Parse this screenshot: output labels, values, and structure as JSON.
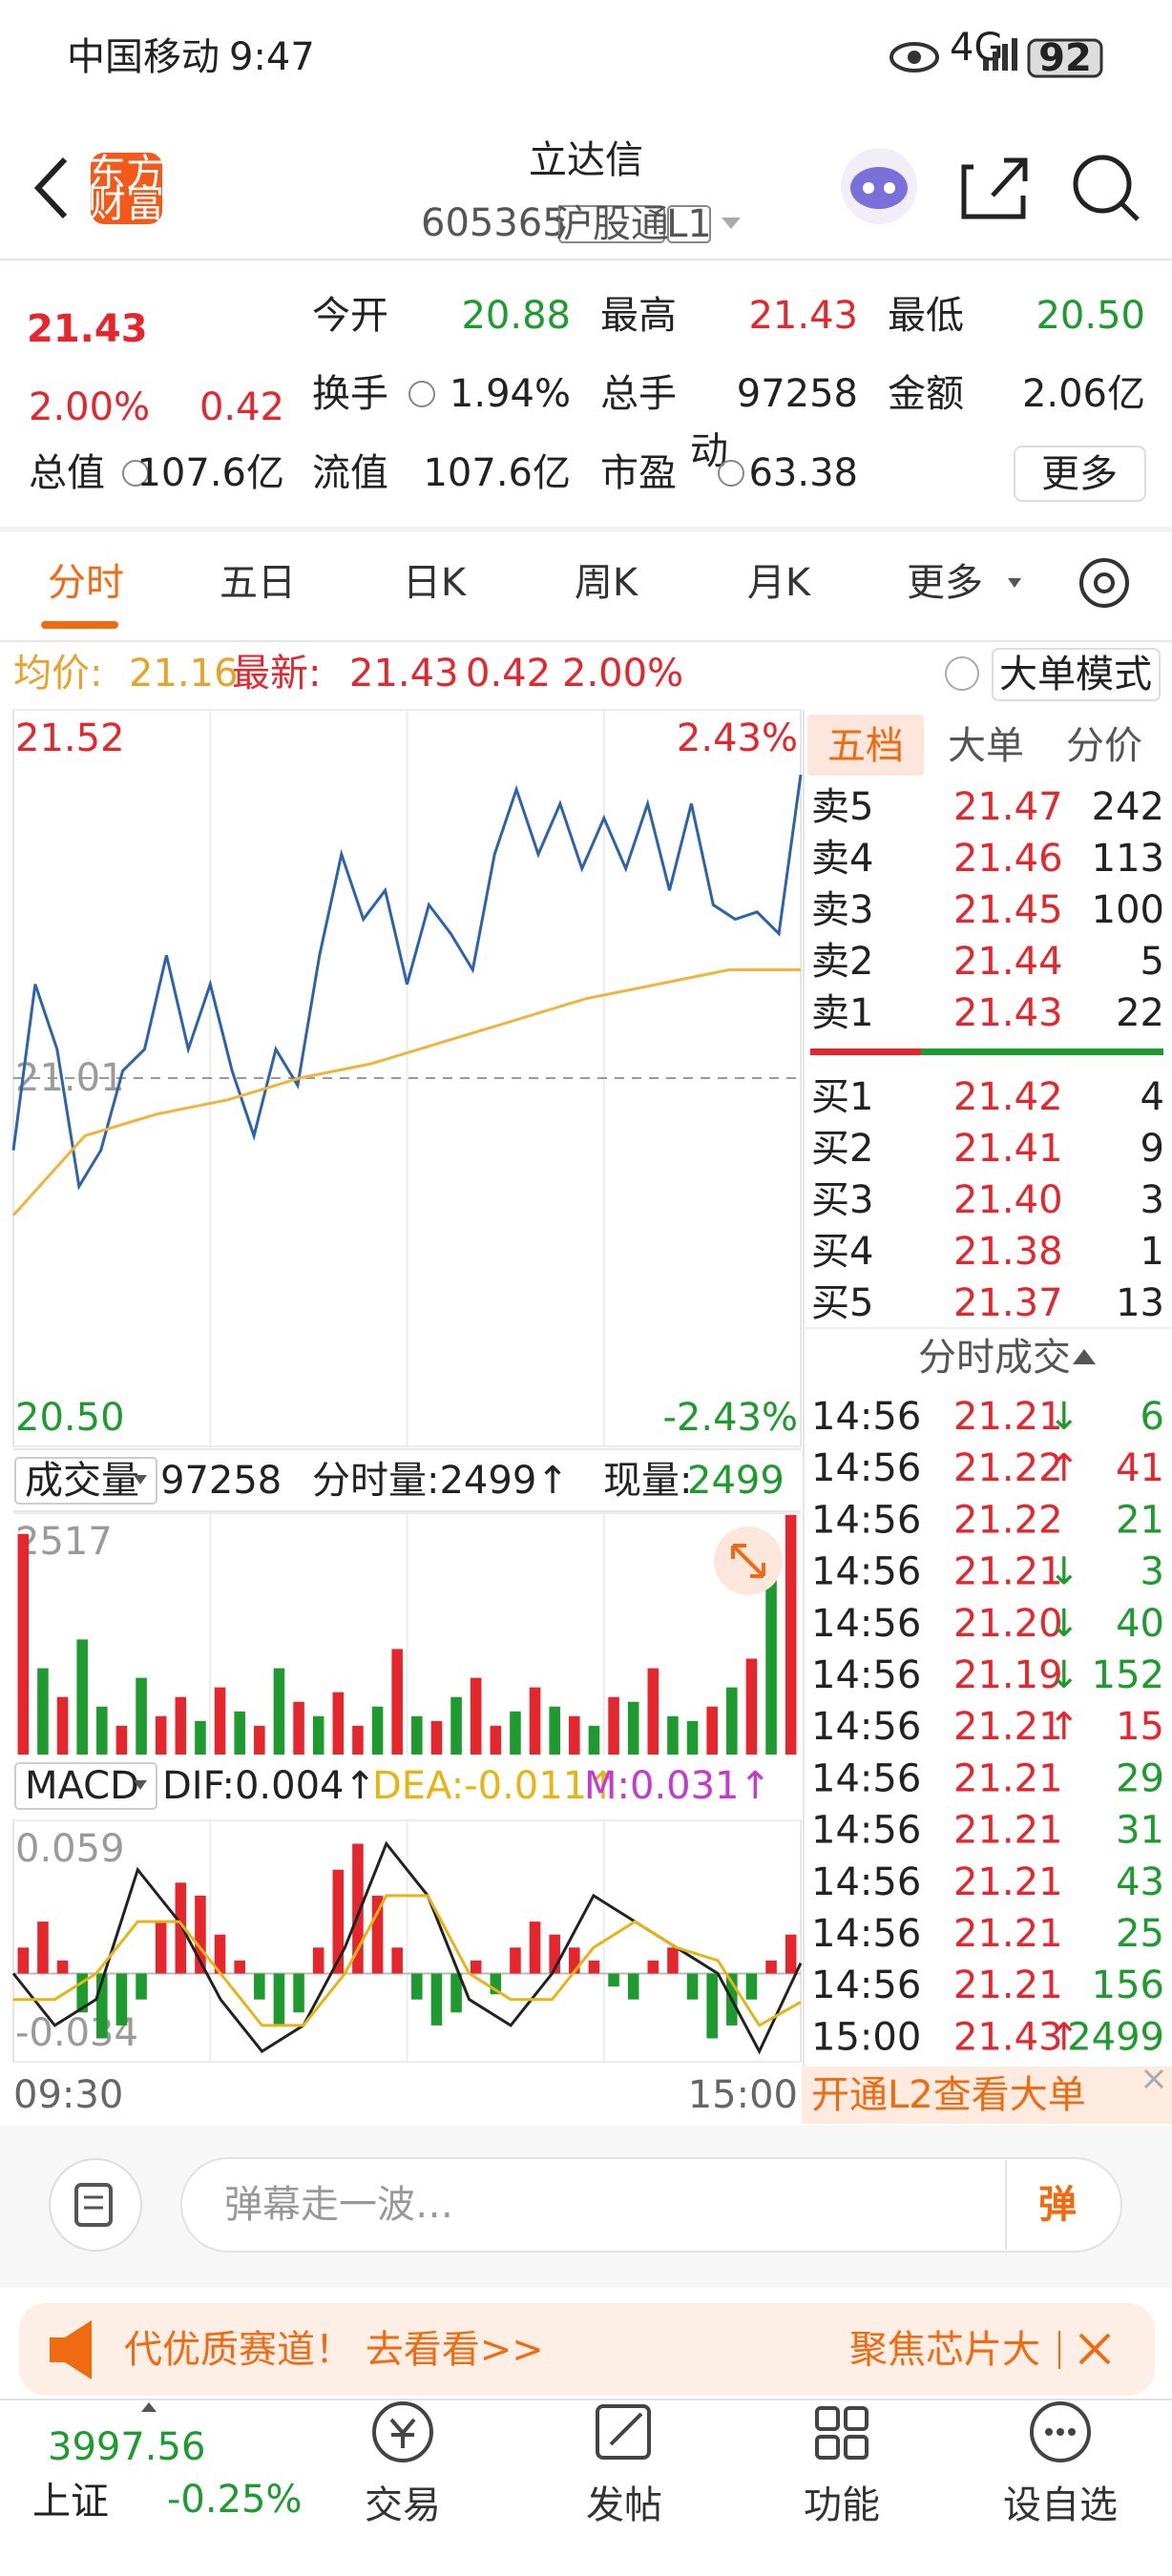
{
  "status_bar": {
    "carrier": "中国移动",
    "time": "9:47",
    "network": "4G",
    "battery": "92"
  },
  "header": {
    "logo": [
      "东方",
      "财富"
    ],
    "title": "立达信",
    "code": "605365",
    "badges": [
      "沪股通",
      "L1"
    ]
  },
  "quote": {
    "price": "21.43",
    "change_pct": "2.00%",
    "change": "0.42",
    "market_cap_label": "总值",
    "market_cap": "107.6亿",
    "fields": [
      {
        "label": "今开",
        "value": "20.88",
        "color": "#1e9b2e"
      },
      {
        "label": "最高",
        "value": "21.43",
        "color": "#e5262d"
      },
      {
        "label": "最低",
        "value": "20.50",
        "color": "#1e9b2e"
      },
      {
        "label": "换手",
        "value": "1.94%",
        "color": "#222222"
      },
      {
        "label": "总手",
        "value": "97258",
        "color": "#222222"
      },
      {
        "label": "金额",
        "value": "2.06亿",
        "color": "#222222"
      },
      {
        "label": "流值",
        "value": "107.6亿",
        "color": "#222222"
      },
      {
        "label": "市盈",
        "value": "63.38",
        "color": "#222222"
      }
    ],
    "pe_mark": "动",
    "more": "更多"
  },
  "tabs": [
    "分时",
    "五日",
    "日K",
    "周K",
    "月K",
    "更多"
  ],
  "info_line": {
    "avg_label": "均价:",
    "avg": "21.16",
    "last_label": "最新:",
    "last": "21.43",
    "change": "0.42",
    "change_pct": "2.00%",
    "mode": "大单模式"
  },
  "chart_data": [
    {
      "type": "line",
      "ylim": [
        20.5,
        21.52
      ],
      "yticks": [
        21.52,
        21.01,
        {
          "value": 20.5,
          "label": "20.50"
        }
      ],
      "ytick_colors": [
        "#e5262d",
        "#9a9a9a",
        "#1e9b2e"
      ],
      "y2lim": [
        -2.43,
        2.43
      ],
      "y2ticks": [
        {
          "value": 2.43,
          "label": "2.43%"
        },
        {
          "value": -2.43,
          "label": "-2.43%"
        }
      ],
      "y2tick_colors": [
        "#e5262d",
        "#1e9b2e"
      ],
      "series": [
        {
          "color": "#2d62ad",
          "values": [
            20.91,
            21.14,
            21.05,
            20.86,
            20.91,
            21.02,
            21.05,
            21.18,
            21.05,
            21.14,
            21.02,
            20.93,
            21.05,
            21.0,
            21.18,
            21.32,
            21.23,
            21.27,
            21.14,
            21.25,
            21.21,
            21.16,
            21.32,
            21.41,
            21.32,
            21.39,
            21.3,
            21.37,
            21.3,
            21.39,
            21.27,
            21.39,
            21.25,
            21.23,
            21.24,
            21.21,
            21.43
          ]
        },
        {
          "color": "#f0b43c",
          "values": [
            20.82,
            20.93,
            20.96,
            20.98,
            21.01,
            21.03,
            21.06,
            21.09,
            21.12,
            21.14,
            21.16,
            21.16
          ]
        }
      ]
    },
    {
      "type": "bar",
      "ylim": [
        0,
        2517
      ],
      "yticks": [
        2517
      ],
      "ytick_colors": [
        "#9a9a9a"
      ],
      "values": [
        2300,
        900,
        600,
        1200,
        500,
        300,
        800,
        400,
        600,
        350,
        700,
        450,
        300,
        900,
        550,
        400,
        650,
        300,
        500,
        1100,
        400,
        350,
        600,
        800,
        300,
        450,
        700,
        500,
        400,
        300,
        600,
        550,
        900,
        400,
        350,
        500,
        700,
        1000,
        1900,
        2499
      ],
      "colors": [
        "#e5262d",
        "#1e9b2e",
        "#e5262d",
        "#1e9b2e",
        "#1e9b2e",
        "#e5262d",
        "#1e9b2e",
        "#e5262d",
        "#e5262d",
        "#1e9b2e",
        "#e5262d",
        "#1e9b2e",
        "#e5262d",
        "#1e9b2e",
        "#e5262d",
        "#1e9b2e",
        "#e5262d",
        "#e5262d",
        "#1e9b2e",
        "#e5262d",
        "#1e9b2e",
        "#e5262d",
        "#1e9b2e",
        "#e5262d",
        "#e5262d",
        "#1e9b2e",
        "#e5262d",
        "#1e9b2e",
        "#e5262d",
        "#1e9b2e",
        "#e5262d",
        "#1e9b2e",
        "#e5262d",
        "#1e9b2e",
        "#1e9b2e",
        "#e5262d",
        "#1e9b2e",
        "#e5262d",
        "#1e9b2e",
        "#e5262d"
      ]
    },
    {
      "type": "macd",
      "ylim": [
        -0.034,
        0.059
      ],
      "yticks": [
        0.059,
        -0.034
      ],
      "ytick_colors": [
        "#9a9a9a",
        "#9a9a9a"
      ],
      "up_color": "#e5262d",
      "down_color": "#1e9b2e",
      "values": [
        0.01,
        0.02,
        0.005,
        -0.015,
        -0.025,
        -0.02,
        -0.01,
        0.02,
        0.035,
        0.03,
        0.015,
        0.005,
        -0.01,
        -0.02,
        -0.015,
        0.01,
        0.04,
        0.05,
        0.03,
        0.01,
        -0.01,
        -0.02,
        -0.015,
        0.005,
        -0.008,
        0.01,
        0.02,
        0.015,
        0.01,
        0.005,
        -0.005,
        -0.01,
        0.005,
        0.01,
        -0.01,
        -0.025,
        -0.02,
        -0.01,
        0.005,
        0.015
      ],
      "series": [
        {
          "color": "#222222",
          "values": [
            0.0,
            -0.02,
            -0.01,
            0.04,
            0.02,
            -0.01,
            -0.03,
            -0.02,
            0.01,
            0.05,
            0.03,
            -0.01,
            -0.02,
            0.0,
            0.03,
            0.02,
            0.01,
            0.0,
            -0.03,
            0.004
          ]
        },
        {
          "color": "#e7b416",
          "values": [
            -0.01,
            -0.01,
            0.0,
            0.02,
            0.02,
            0.0,
            -0.02,
            -0.02,
            0.0,
            0.03,
            0.03,
            0.0,
            -0.01,
            -0.01,
            0.01,
            0.02,
            0.01,
            0.005,
            -0.02,
            -0.011
          ]
        }
      ],
      "x_labels": [
        "09:30",
        "15:00"
      ]
    }
  ],
  "volume_header": {
    "selector": "成交量",
    "total": "97258",
    "tick_volume": "分时量:2499↑",
    "current_label": "现量:",
    "current": "2499"
  },
  "macd_header": {
    "selector": "MACD",
    "dif": "DIF:0.004↑",
    "dea": "DEA:-0.011↑",
    "m": "M:0.031↑"
  },
  "order_book": {
    "tabs": [
      "五档",
      "大单",
      "分价"
    ],
    "asks": [
      [
        "卖5",
        "21.47",
        "242"
      ],
      [
        "卖4",
        "21.46",
        "113"
      ],
      [
        "卖3",
        "21.45",
        "100"
      ],
      [
        "卖2",
        "21.44",
        "5"
      ],
      [
        "卖1",
        "21.43",
        "22"
      ]
    ],
    "bids": [
      [
        "买1",
        "21.42",
        "4"
      ],
      [
        "买2",
        "21.41",
        "9"
      ],
      [
        "买3",
        "21.40",
        "3"
      ],
      [
        "买4",
        "21.38",
        "1"
      ],
      [
        "买5",
        "21.37",
        "13"
      ]
    ],
    "trades_title": "分时成交",
    "trades": [
      {
        "time": "14:56",
        "price": "21.21",
        "arrow": "↓",
        "volume": "6",
        "volume_color": "#1e9b2e"
      },
      {
        "time": "14:56",
        "price": "21.22",
        "arrow": "↑",
        "volume": "41",
        "volume_color": "#e5262d"
      },
      {
        "time": "14:56",
        "price": "21.22",
        "volume": "21",
        "volume_color": "#1e9b2e"
      },
      {
        "time": "14:56",
        "price": "21.21",
        "arrow": "↓",
        "volume": "3",
        "volume_color": "#1e9b2e"
      },
      {
        "time": "14:56",
        "price": "21.20",
        "arrow": "↓",
        "volume": "40",
        "volume_color": "#1e9b2e"
      },
      {
        "time": "14:56",
        "price": "21.19",
        "arrow": "↓",
        "volume": "152",
        "volume_color": "#1e9b2e"
      },
      {
        "time": "14:56",
        "price": "21.21",
        "arrow": "↑",
        "volume": "15",
        "volume_color": "#e5262d"
      },
      {
        "time": "14:56",
        "price": "21.21",
        "volume": "29",
        "volume_color": "#1e9b2e"
      },
      {
        "time": "14:56",
        "price": "21.21",
        "volume": "31",
        "volume_color": "#1e9b2e"
      },
      {
        "time": "14:56",
        "price": "21.21",
        "volume": "43",
        "volume_color": "#1e9b2e"
      },
      {
        "time": "14:56",
        "price": "21.21",
        "volume": "25",
        "volume_color": "#1e9b2e"
      },
      {
        "time": "14:56",
        "price": "21.21",
        "volume": "156",
        "volume_color": "#1e9b2e"
      },
      {
        "time": "15:00",
        "price": "21.43",
        "arrow": "↑",
        "volume": "2499",
        "volume_color": "#1e9b2e"
      }
    ]
  },
  "l2_promo": "开通L2查看大单",
  "comment": {
    "placeholder": "弹幕走一波…",
    "button": "弹"
  },
  "banner": {
    "text": "代优质赛道！ 去看看>>",
    "right": "聚焦芯片大"
  },
  "bottom_nav": {
    "index_value": "3997.56",
    "index_name": "上证",
    "index_change": "-0.25%",
    "items": [
      "交易",
      "发帖",
      "功能",
      "设自选"
    ]
  }
}
